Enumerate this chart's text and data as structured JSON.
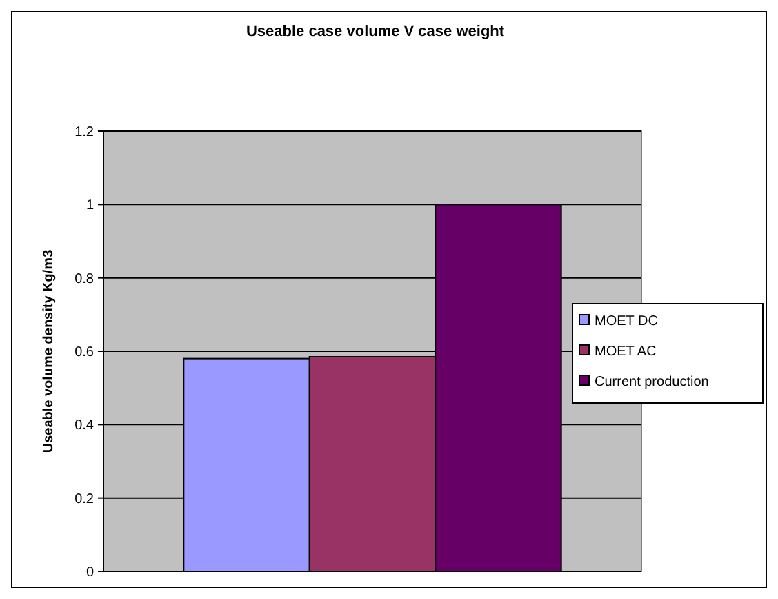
{
  "chart_data": {
    "type": "bar",
    "title": "Useable case volume V case weight",
    "ylabel": "Useable volume density Kg/m3",
    "categories": [
      null
    ],
    "series": [
      {
        "name": "MOET DC",
        "color": "#9999ff",
        "values": [
          0.58
        ]
      },
      {
        "name": "MOET AC",
        "color": "#993366",
        "values": [
          0.585
        ]
      },
      {
        "name": "Current production",
        "color": "#660066",
        "values": [
          1
        ]
      }
    ],
    "ylim": [
      0,
      1.2
    ],
    "yticks": [
      0,
      0.2,
      0.4,
      0.6,
      0.8,
      1,
      1.2
    ],
    "grid": "y",
    "legend": "right"
  }
}
